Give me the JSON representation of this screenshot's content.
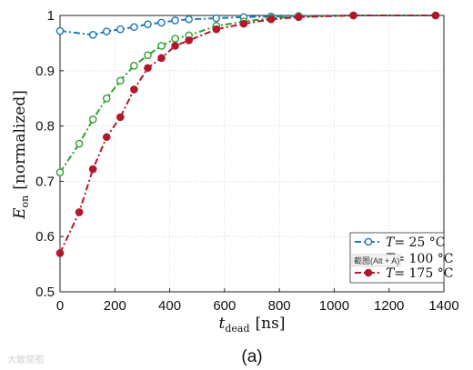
{
  "chart_data": {
    "type": "line",
    "xlabel_main": "t",
    "xlabel_sub": "dead",
    "xlabel_unit": "[ns]",
    "ylabel_main": "E",
    "ylabel_sub": "on",
    "ylabel_unit": "[normalized]",
    "xlim": [
      0,
      1400
    ],
    "ylim": [
      0.5,
      1.0
    ],
    "x_ticks": [
      0,
      200,
      400,
      600,
      800,
      1000,
      1200,
      1400
    ],
    "y_ticks": [
      0.5,
      0.6,
      0.7,
      0.8,
      0.9,
      1
    ],
    "grid": true,
    "legend_placement": "bottom-right",
    "series": [
      {
        "name": "T = 25 °C",
        "legend_prefix": "T",
        "legend_value": "= 25 °C",
        "color": "#1f77b4",
        "marker": "open-circle",
        "dash": "dashdot",
        "x": [
          0,
          120,
          170,
          220,
          270,
          320,
          370,
          420,
          470,
          570,
          670,
          770,
          870,
          1070,
          1370
        ],
        "y": [
          0.972,
          0.965,
          0.971,
          0.975,
          0.979,
          0.984,
          0.987,
          0.991,
          0.993,
          0.995,
          0.997,
          0.998,
          0.999,
          1.0,
          1.0
        ]
      },
      {
        "name": "T = 100 °C",
        "legend_prefix": "T",
        "legend_value": "= 100 °C",
        "color": "#2ca02c",
        "marker": "open-circle",
        "dash": "dashdot",
        "x": [
          0,
          70,
          120,
          170,
          220,
          270,
          320,
          370,
          420,
          470,
          570,
          670,
          770,
          870,
          1070,
          1370
        ],
        "y": [
          0.716,
          0.768,
          0.812,
          0.85,
          0.882,
          0.909,
          0.928,
          0.945,
          0.958,
          0.964,
          0.981,
          0.989,
          0.995,
          0.998,
          1.0,
          1.0
        ]
      },
      {
        "name": "T = 175 °C",
        "legend_prefix": "T",
        "legend_value": "= 175 °C",
        "color": "#b2182b",
        "marker": "filled-circle",
        "dash": "dashdot",
        "x": [
          0,
          70,
          120,
          170,
          220,
          270,
          320,
          370,
          420,
          470,
          570,
          670,
          770,
          870,
          1070,
          1370
        ],
        "y": [
          0.57,
          0.644,
          0.722,
          0.78,
          0.816,
          0.866,
          0.905,
          0.923,
          0.945,
          0.955,
          0.975,
          0.985,
          0.993,
          0.997,
          1.0,
          1.0
        ]
      }
    ]
  },
  "caption": "(a)",
  "overlay_tooltip": "截图(Alt + A)",
  "watermark": "大致简图"
}
